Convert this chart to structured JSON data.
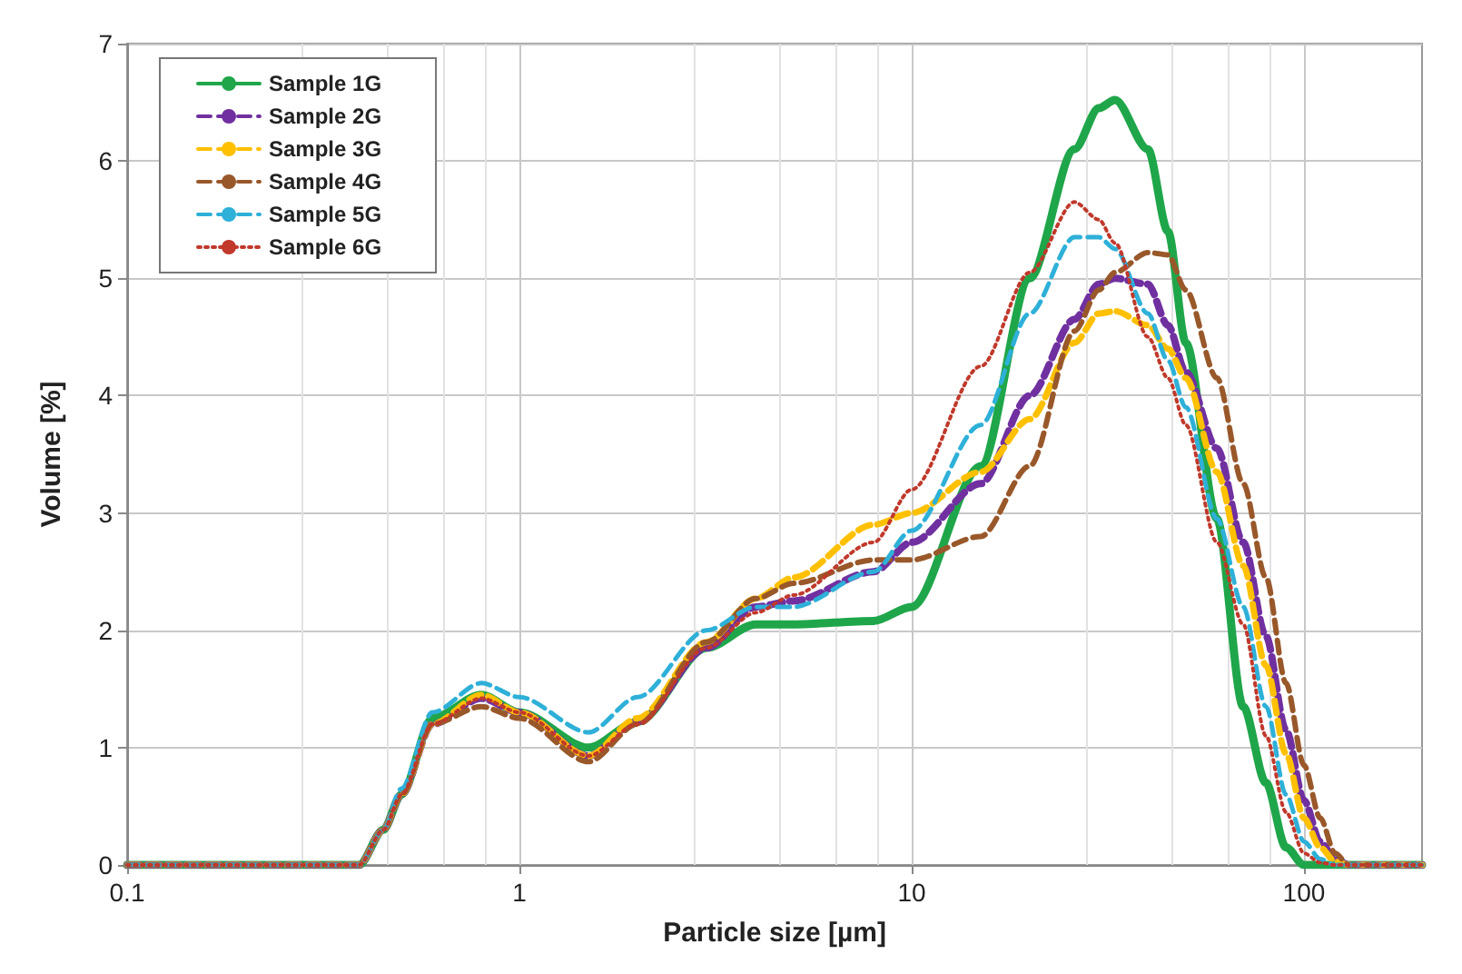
{
  "chart_data": {
    "type": "line",
    "xlabel": "Particle size [µm]",
    "ylabel": "Volume [%]",
    "log": "x",
    "xlim": [
      0.1,
      200
    ],
    "xticks": [
      0.1,
      1,
      10,
      100
    ],
    "ylim": [
      0,
      7
    ],
    "yticks": [
      0,
      1,
      2,
      3,
      4,
      5,
      6,
      7
    ],
    "grid": true,
    "legend": "top left",
    "marker": "none",
    "x": [
      0.1,
      0.39,
      0.45,
      0.5,
      0.6,
      0.8,
      1,
      1.5,
      2,
      3,
      4,
      5,
      8,
      10,
      15,
      20,
      26,
      30,
      33,
      40,
      45,
      50,
      60,
      70,
      80,
      90,
      100,
      110,
      120,
      130,
      200
    ],
    "series": [
      {
        "name": "Sample 1G",
        "color": "#1fa64a",
        "line_style": "solid",
        "values": [
          0,
          0,
          0.3,
          0.6,
          1.25,
          1.45,
          1.3,
          1.0,
          1.22,
          1.85,
          2.05,
          2.05,
          2.08,
          2.2,
          3.4,
          5.0,
          6.1,
          6.45,
          6.52,
          6.1,
          5.4,
          4.45,
          2.95,
          1.35,
          0.7,
          0.15,
          0,
          0,
          0,
          0,
          0
        ]
      },
      {
        "name": "Sample 2G",
        "color": "#7030a0",
        "line_style": "dashed",
        "values": [
          0,
          0,
          0.3,
          0.6,
          1.2,
          1.42,
          1.3,
          0.93,
          1.22,
          1.85,
          2.2,
          2.25,
          2.5,
          2.75,
          3.25,
          4.0,
          4.65,
          4.95,
          5.0,
          4.95,
          4.6,
          4.2,
          3.55,
          2.75,
          1.95,
          1.15,
          0.55,
          0.2,
          0.05,
          0,
          0
        ]
      },
      {
        "name": "Sample 3G",
        "color": "#ffc000",
        "line_style": "dashed",
        "values": [
          0,
          0,
          0.3,
          0.6,
          1.2,
          1.45,
          1.3,
          0.93,
          1.25,
          1.9,
          2.27,
          2.45,
          2.9,
          3.0,
          3.35,
          3.8,
          4.45,
          4.7,
          4.72,
          4.6,
          4.4,
          4.15,
          3.35,
          2.55,
          1.7,
          0.95,
          0.4,
          0.15,
          0.03,
          0,
          0
        ]
      },
      {
        "name": "Sample 4G",
        "color": "#99582a",
        "line_style": "dashed",
        "values": [
          0,
          0,
          0.3,
          0.6,
          1.2,
          1.35,
          1.25,
          0.88,
          1.2,
          1.9,
          2.27,
          2.4,
          2.6,
          2.6,
          2.8,
          3.4,
          4.55,
          4.9,
          5.05,
          5.22,
          5.2,
          4.9,
          4.15,
          3.25,
          2.45,
          1.55,
          0.85,
          0.4,
          0.1,
          0,
          0
        ]
      },
      {
        "name": "Sample 5G",
        "color": "#2eb0d8",
        "line_style": "dashed",
        "values": [
          0,
          0,
          0.3,
          0.65,
          1.3,
          1.55,
          1.43,
          1.13,
          1.43,
          2.0,
          2.2,
          2.2,
          2.5,
          2.85,
          3.75,
          4.7,
          5.35,
          5.35,
          5.25,
          4.7,
          4.3,
          3.9,
          2.95,
          2.2,
          1.35,
          0.6,
          0.2,
          0.05,
          0,
          0,
          0
        ]
      },
      {
        "name": "Sample 6G",
        "color": "#c0392b",
        "line_style": "dotted",
        "values": [
          0,
          0,
          0.3,
          0.6,
          1.2,
          1.42,
          1.3,
          0.93,
          1.2,
          1.85,
          2.15,
          2.3,
          2.75,
          3.2,
          4.25,
          5.05,
          5.65,
          5.5,
          5.3,
          4.5,
          4.15,
          3.75,
          2.75,
          2.05,
          1.1,
          0.45,
          0.1,
          0.02,
          0,
          0,
          0
        ]
      }
    ]
  }
}
